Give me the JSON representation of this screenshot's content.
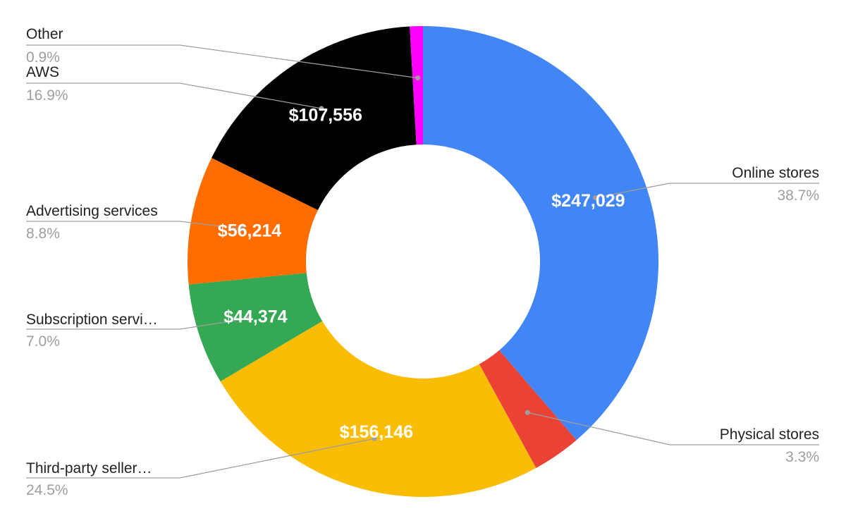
{
  "chart_data": {
    "type": "pie",
    "donut": true,
    "title": "",
    "categories": [
      "Online stores",
      "Physical stores",
      "Third-party seller…",
      "Subscription servi…",
      "Advertising services",
      "AWS",
      "Other"
    ],
    "values": [
      247029,
      21229,
      156146,
      44374,
      56214,
      107556,
      5735
    ],
    "value_labels": [
      "$247,029",
      "",
      "$156,146",
      "$44,374",
      "$56,214",
      "$107,556",
      ""
    ],
    "percent_labels": [
      "38.7%",
      "3.3%",
      "24.5%",
      "7.0%",
      "8.8%",
      "16.9%",
      "0.9%"
    ],
    "colors": [
      "#4285f4",
      "#ea4335",
      "#fbbc04",
      "#34a853",
      "#ff6d01",
      "#000000",
      "#ff00ff"
    ],
    "legend": "none"
  }
}
